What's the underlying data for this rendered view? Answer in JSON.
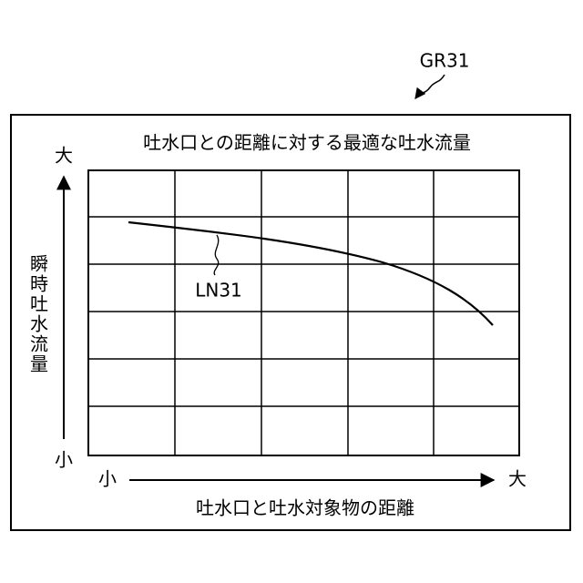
{
  "figure_label": "GR31",
  "title": "吐水口との距離に対する最適な吐水流量",
  "y_axis": {
    "label": "瞬時吐水流量",
    "high": "大",
    "low": "小"
  },
  "x_axis": {
    "label": "吐水口と吐水対象物の距離",
    "low": "小",
    "high": "大"
  },
  "curve_label": "LN31"
}
